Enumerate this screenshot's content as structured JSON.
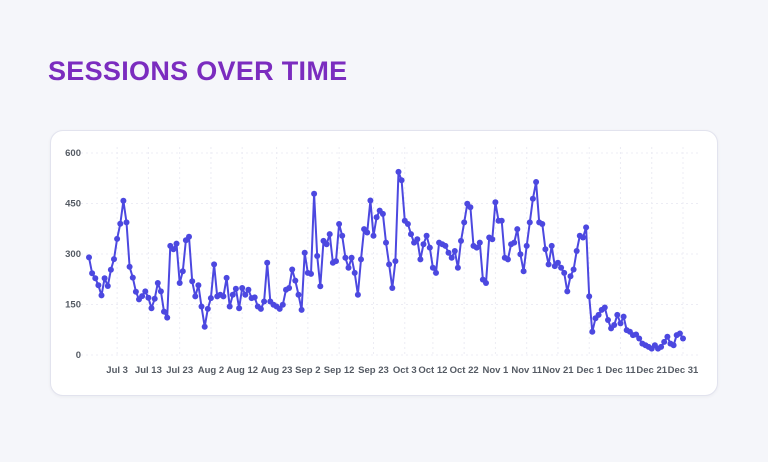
{
  "header": {
    "title": "SESSIONS OVER TIME"
  },
  "colors": {
    "title_purple": "#7b2cbf",
    "line_indigo": "#4c48e0",
    "grid": "#ececf4",
    "axis_text": "#555b64",
    "card_bg": "#ffffff",
    "page_bg": "#f5f6fa"
  },
  "chart_data": {
    "type": "line",
    "title": "Sessions over time",
    "xlabel": "",
    "ylabel": "",
    "ylim": [
      0,
      600
    ],
    "y_ticks": [
      0,
      150,
      300,
      450,
      600
    ],
    "grid": true,
    "legend": "none",
    "markers": true,
    "frequency": "daily points, tick labels roughly every 10 days",
    "x_ticks": [
      {
        "index": 9,
        "label": "Jul 3"
      },
      {
        "index": 19,
        "label": "Jul 13"
      },
      {
        "index": 29,
        "label": "Jul 23"
      },
      {
        "index": 39,
        "label": "Aug 2"
      },
      {
        "index": 49,
        "label": "Aug 12"
      },
      {
        "index": 60,
        "label": "Aug 23"
      },
      {
        "index": 70,
        "label": "Sep 2"
      },
      {
        "index": 80,
        "label": "Sep 12"
      },
      {
        "index": 91,
        "label": "Sep 23"
      },
      {
        "index": 101,
        "label": "Oct 3"
      },
      {
        "index": 110,
        "label": "Oct 12"
      },
      {
        "index": 120,
        "label": "Oct 22"
      },
      {
        "index": 130,
        "label": "Nov 1"
      },
      {
        "index": 140,
        "label": "Nov 11"
      },
      {
        "index": 150,
        "label": "Nov 21"
      },
      {
        "index": 160,
        "label": "Dec 1"
      },
      {
        "index": 170,
        "label": "Dec 11"
      },
      {
        "index": 180,
        "label": "Dec 21"
      },
      {
        "index": 190,
        "label": "Dec 31"
      }
    ],
    "values": [
      290,
      243,
      228,
      207,
      177,
      228,
      205,
      253,
      285,
      345,
      390,
      458,
      394,
      262,
      230,
      188,
      165,
      175,
      189,
      170,
      139,
      167,
      214,
      189,
      129,
      111,
      324,
      314,
      331,
      214,
      249,
      341,
      351,
      219,
      174,
      207,
      144,
      84,
      137,
      169,
      269,
      174,
      179,
      174,
      229,
      144,
      179,
      197,
      139,
      199,
      179,
      194,
      169,
      171,
      144,
      137,
      159,
      274,
      159,
      149,
      144,
      137,
      149,
      194,
      199,
      254,
      221,
      179,
      134,
      304,
      244,
      241,
      479,
      294,
      204,
      339,
      329,
      359,
      274,
      279,
      389,
      354,
      289,
      259,
      289,
      244,
      179,
      284,
      374,
      364,
      459,
      354,
      409,
      429,
      419,
      334,
      269,
      199,
      279,
      544,
      519,
      399,
      389,
      359,
      334,
      344,
      284,
      329,
      354,
      319,
      259,
      244,
      334,
      329,
      324,
      304,
      289,
      309,
      259,
      339,
      394,
      449,
      439,
      324,
      319,
      334,
      224,
      214,
      349,
      344,
      454,
      399,
      399,
      289,
      284,
      329,
      334,
      374,
      299,
      249,
      324,
      394,
      464,
      514,
      394,
      389,
      314,
      269,
      324,
      264,
      274,
      259,
      244,
      189,
      234,
      254,
      309,
      354,
      349,
      379,
      174,
      69,
      109,
      119,
      134,
      141,
      104,
      79,
      89,
      119,
      94,
      114,
      74,
      69,
      59,
      61,
      49,
      34,
      29,
      24,
      19,
      29,
      19,
      24,
      39,
      54,
      34,
      29,
      59,
      64,
      49
    ]
  }
}
